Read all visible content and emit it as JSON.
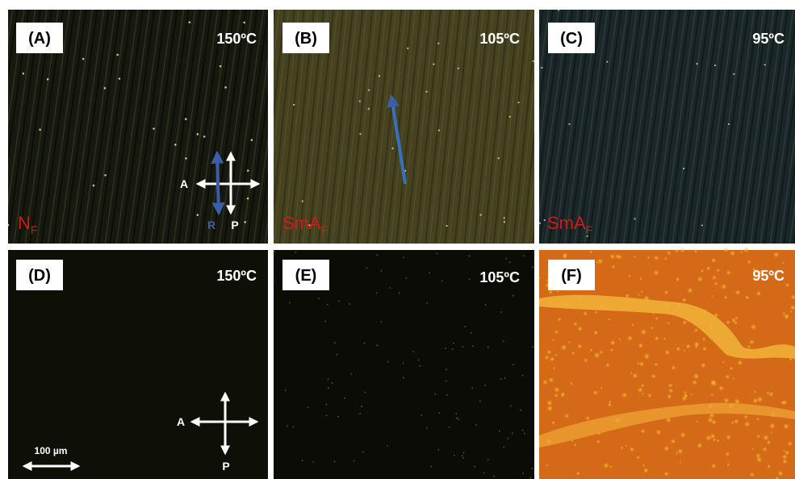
{
  "panels": [
    {
      "label": "(A)",
      "temperature": "150ºC",
      "phase": {
        "main": "N",
        "sub": "F"
      }
    },
    {
      "label": "(B)",
      "temperature": "105ºC",
      "phase": {
        "main": "SmA",
        "sub": "F"
      }
    },
    {
      "label": "(C)",
      "temperature": "95ºC",
      "phase": {
        "main": "SmA",
        "sub": "F"
      }
    },
    {
      "label": "(D)",
      "temperature": "150ºC"
    },
    {
      "label": "(E)",
      "temperature": "105ºC"
    },
    {
      "label": "(F)",
      "temperature": "95ºC"
    }
  ],
  "directions": {
    "analyzer": "A",
    "polarizer": "P",
    "rubbing": "R"
  },
  "scale_bar": "100 µm"
}
